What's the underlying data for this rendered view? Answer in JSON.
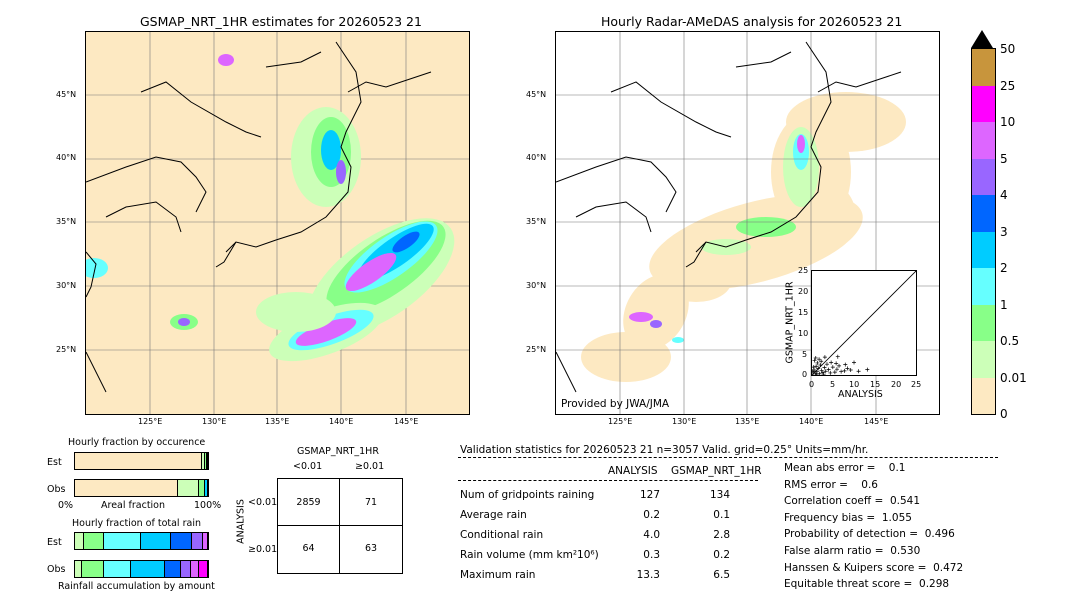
{
  "left_map": {
    "title": "GSMAP_NRT_1HR estimates for 20260523 21",
    "lat_labels": [
      "45°N",
      "40°N",
      "35°N",
      "30°N",
      "25°N"
    ],
    "lon_labels": [
      "125°E",
      "130°E",
      "135°E",
      "140°E",
      "145°E"
    ]
  },
  "right_map": {
    "title": "Hourly Radar-AMeDAS analysis for 20260523 21",
    "lat_labels": [
      "45°N",
      "40°N",
      "35°N",
      "30°N",
      "25°N"
    ],
    "lon_labels": [
      "125°E",
      "130°E",
      "135°E",
      "140°E",
      "145°E"
    ],
    "credit": "Provided by JWA/JMA"
  },
  "colorbar": {
    "labels": [
      "50",
      "25",
      "10",
      "5",
      "4",
      "3",
      "2",
      "1",
      "0.5",
      "0.01",
      "0"
    ],
    "colors": [
      "#c8953c",
      "#ff00ff",
      "#dd66ff",
      "#9966ff",
      "#0066ff",
      "#00ccff",
      "#66ffff",
      "#88ff88",
      "#ccffb8",
      "#fde9c2"
    ]
  },
  "inset_scatter": {
    "xlabel": "ANALYSIS",
    "ylabel": "GSMAP_NRT_1HR",
    "ticks": [
      "0",
      "5",
      "10",
      "15",
      "20",
      "25"
    ]
  },
  "fraction_occurrence": {
    "title": "Hourly fraction by occurence",
    "rows": [
      "Est",
      "Obs"
    ],
    "axis_left": "0%",
    "axis_mid": "Areal fraction",
    "axis_right": "100%",
    "est": [
      0.952,
      0.028,
      0.012,
      0.008
    ],
    "obs": [
      0.775,
      0.16,
      0.04,
      0.025
    ],
    "colors": [
      "#fde9c2",
      "#ccffb8",
      "#88ff88",
      "#00ccff"
    ]
  },
  "fraction_total": {
    "title": "Hourly fraction of total rain",
    "rows": [
      "Est",
      "Obs"
    ],
    "footer": "Rainfall accumulation by amount",
    "est": [
      0.07,
      0.15,
      0.28,
      0.22,
      0.16,
      0.08,
      0.04
    ],
    "obs": [
      0.05,
      0.17,
      0.2,
      0.26,
      0.12,
      0.07,
      0.06,
      0.07
    ],
    "colors_est": [
      "#ccffb8",
      "#88ff88",
      "#66ffff",
      "#00ccff",
      "#0066ff",
      "#9966ff",
      "#dd66ff"
    ],
    "colors_obs": [
      "#ccffb8",
      "#88ff88",
      "#66ffff",
      "#00ccff",
      "#0066ff",
      "#9966ff",
      "#dd66ff",
      "#ff00ff"
    ]
  },
  "contingency": {
    "title": "GSMAP_NRT_1HR",
    "col_labels": [
      "<0.01",
      "≥0.01"
    ],
    "row_axis": "ANALYSIS",
    "row_labels": [
      "<0.01",
      "≥0.01"
    ],
    "cells": [
      [
        "2859",
        "71"
      ],
      [
        "64",
        "63"
      ]
    ]
  },
  "validation": {
    "header": "Validation statistics for 20260523 21  n=3057 Valid. grid=0.25° Units=mm/hr.",
    "col_analysis": "ANALYSIS",
    "col_gsmap": "GSMAP_NRT_1HR",
    "rows": [
      {
        "label": "Num of gridpoints raining",
        "a": "127",
        "g": "134"
      },
      {
        "label": "Average rain",
        "a": "0.2",
        "g": "0.1"
      },
      {
        "label": "Conditional rain",
        "a": "4.0",
        "g": "2.8"
      },
      {
        "label": "Rain volume (mm km²10⁶)",
        "a": "0.3",
        "g": "0.2"
      },
      {
        "label": "Maximum rain",
        "a": "13.3",
        "g": "6.5"
      }
    ],
    "scores": [
      "Mean abs error =    0.1",
      "RMS error =    0.6",
      "Correlation coeff =  0.541",
      "Frequency bias =  1.055",
      "Probability of detection =  0.496",
      "False alarm ratio =  0.530",
      "Hanssen & Kuipers score =  0.472",
      "Equitable threat score =  0.298"
    ]
  },
  "chart_data": {
    "type": "scatter",
    "title": "",
    "xlabel": "ANALYSIS",
    "ylabel": "GSMAP_NRT_1HR",
    "xlim": [
      0,
      25
    ],
    "ylim": [
      0,
      25
    ],
    "grid": false,
    "points": [
      [
        0.3,
        0.5
      ],
      [
        0.5,
        1.2
      ],
      [
        0.8,
        0.4
      ],
      [
        1.0,
        2.1
      ],
      [
        1.2,
        0.8
      ],
      [
        1.5,
        1.6
      ],
      [
        1.8,
        0.3
      ],
      [
        2.0,
        2.4
      ],
      [
        2.3,
        1.1
      ],
      [
        2.6,
        0.6
      ],
      [
        3.0,
        1.8
      ],
      [
        3.3,
        0.9
      ],
      [
        3.6,
        2.6
      ],
      [
        4.0,
        1.3
      ],
      [
        4.4,
        0.5
      ],
      [
        5.0,
        1.9
      ],
      [
        5.5,
        0.7
      ],
      [
        6.0,
        1.4
      ],
      [
        6.5,
        2.2
      ],
      [
        7.0,
        0.8
      ],
      [
        7.8,
        1.0
      ],
      [
        8.5,
        1.6
      ],
      [
        9.3,
        1.2
      ],
      [
        10.1,
        3.0
      ],
      [
        11.2,
        0.9
      ],
      [
        13.3,
        1.3
      ],
      [
        0.6,
        3.5
      ],
      [
        1.3,
        2.9
      ],
      [
        0.9,
        4.1
      ],
      [
        2.2,
        3.3
      ],
      [
        3.1,
        4.3
      ],
      [
        4.6,
        3.0
      ],
      [
        6.2,
        4.4
      ],
      [
        0.4,
        1.9
      ],
      [
        1.1,
        0.2
      ],
      [
        2.8,
        0.2
      ],
      [
        0.2,
        0.9
      ],
      [
        1.7,
        3.8
      ],
      [
        5.8,
        2.8
      ],
      [
        8.0,
        2.5
      ]
    ]
  }
}
